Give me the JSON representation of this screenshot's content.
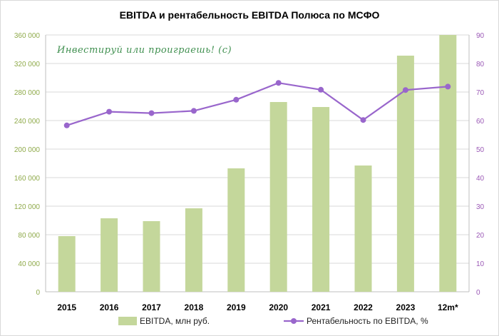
{
  "chart_data": {
    "type": "bar+line",
    "title": "EBITDA и рентабельность  EBITDA Полюса по МСФО",
    "annotation": "Инвестируй или проиграешь! (с)",
    "categories": [
      "2015",
      "2016",
      "2017",
      "2018",
      "2019",
      "2020",
      "2021",
      "2022",
      "2023",
      "12m*"
    ],
    "series": [
      {
        "name": "EBITDA, млн руб.",
        "type": "bar",
        "axis": "left",
        "color": "#c4d79b",
        "values": [
          78000,
          103000,
          99000,
          117000,
          173000,
          266000,
          259000,
          177000,
          331000,
          360000
        ]
      },
      {
        "name": "Рентабельность по EBITDA, %",
        "type": "line",
        "axis": "right",
        "color": "#9966cc",
        "values": [
          58.3,
          63.1,
          62.6,
          63.4,
          67.3,
          73.2,
          70.8,
          60.2,
          70.7,
          71.9
        ]
      }
    ],
    "y_left": {
      "min": 0,
      "max": 360000,
      "step": 40000,
      "tick_labels": [
        "0",
        "40 000",
        "80 000",
        "120 000",
        "160 000",
        "200 000",
        "240 000",
        "280 000",
        "320 000",
        "360 000"
      ]
    },
    "y_right": {
      "min": 0,
      "max": 90,
      "step": 10,
      "tick_labels": [
        "0",
        "10",
        "20",
        "30",
        "40",
        "50",
        "60",
        "70",
        "80",
        "90"
      ]
    },
    "grid": true,
    "legend_position": "bottom"
  }
}
